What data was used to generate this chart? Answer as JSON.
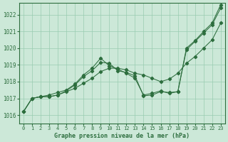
{
  "title": "Graphe pression niveau de la mer (hPa)",
  "background_color": "#cce8d8",
  "grid_color": "#99ccb0",
  "line_color": "#2d6e3e",
  "xlim": [
    -0.5,
    23.5
  ],
  "ylim": [
    1015.5,
    1022.7
  ],
  "yticks": [
    1016,
    1017,
    1018,
    1019,
    1020,
    1021,
    1022
  ],
  "xticks": [
    0,
    1,
    2,
    3,
    4,
    5,
    6,
    7,
    8,
    9,
    10,
    11,
    12,
    13,
    14,
    15,
    16,
    17,
    18,
    19,
    20,
    21,
    22,
    23
  ],
  "series": [
    [
      1016.2,
      1017.0,
      1017.1,
      1017.1,
      1017.2,
      1017.4,
      1017.6,
      1017.9,
      1018.2,
      1018.6,
      1018.8,
      1018.8,
      1018.7,
      1018.5,
      1018.4,
      1018.2,
      1018.0,
      1018.15,
      1018.5,
      1019.1,
      1019.5,
      1020.0,
      1020.5,
      1021.5
    ],
    [
      1016.2,
      1017.0,
      1017.1,
      1017.1,
      1017.2,
      1017.45,
      1017.8,
      1018.3,
      1018.65,
      1019.15,
      1019.1,
      1018.65,
      1018.55,
      1018.35,
      1017.15,
      1017.2,
      1017.4,
      1017.35,
      1017.4,
      1019.9,
      1020.4,
      1020.9,
      1021.4,
      1022.4
    ],
    [
      1016.2,
      1017.0,
      1017.1,
      1017.2,
      1017.35,
      1017.5,
      1017.85,
      1018.4,
      1018.8,
      1019.4,
      1018.95,
      1018.75,
      1018.5,
      1018.2,
      1017.2,
      1017.3,
      1017.45,
      1017.3,
      1017.4,
      1020.0,
      1020.45,
      1021.0,
      1021.5,
      1022.6
    ]
  ]
}
